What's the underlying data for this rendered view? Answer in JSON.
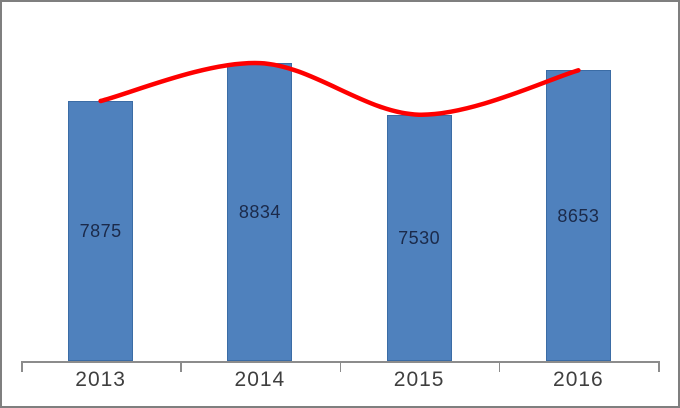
{
  "frame": {
    "border_color": "#7f7f7f",
    "background": "#ffffff"
  },
  "chart_data": {
    "type": "bar",
    "title": "",
    "xlabel": "",
    "ylabel": "",
    "categories": [
      "2013",
      "2014",
      "2015",
      "2016"
    ],
    "series": [
      {
        "name": "bars",
        "type": "bar",
        "values": [
          7875,
          8834,
          7530,
          8653
        ],
        "color": "#4f81bd",
        "border_color": "#3b6ca5",
        "data_label_position": "center",
        "data_label_color": "#1b2a4a"
      },
      {
        "name": "trend-line",
        "type": "line",
        "smooth": true,
        "values": [
          7875,
          8834,
          7530,
          8653
        ],
        "color": "#fe0000",
        "stroke_width": 4.5
      }
    ],
    "ylim": [
      1300,
      10000
    ],
    "y_axis_labels_visible": false,
    "grid": false,
    "legend_position": "none",
    "axis_color": "#8c8c8c",
    "tick_label_color": "#3f3f3f"
  }
}
